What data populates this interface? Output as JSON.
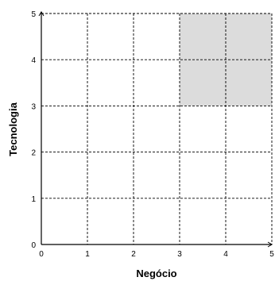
{
  "chart_data": {
    "type": "scatter",
    "title": "",
    "xlabel": "Negócio",
    "ylabel": "Tecnologia",
    "xlim": [
      0,
      5
    ],
    "ylim": [
      0,
      5
    ],
    "x_ticks": [
      "0",
      "1",
      "2",
      "3",
      "4",
      "5"
    ],
    "y_ticks": [
      "0",
      "1",
      "2",
      "3",
      "4",
      "5"
    ],
    "grid": true,
    "grid_style": "dashed",
    "highlight_region": {
      "x": [
        3,
        5
      ],
      "y": [
        3,
        5
      ],
      "color": "#dcdcdc"
    },
    "series": []
  }
}
